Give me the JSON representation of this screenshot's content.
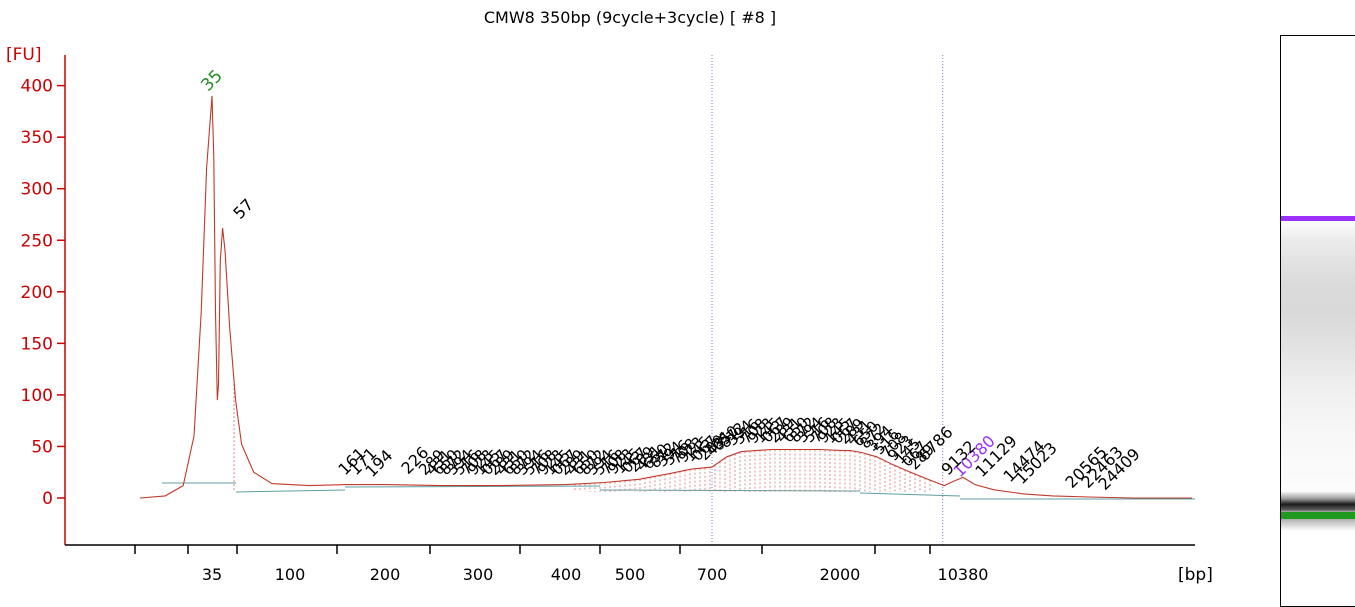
{
  "title": "CMW8 350bp (9cycle+3cycle)  [ #8 ]",
  "chart_data": {
    "type": "line",
    "title": "CMW8 350bp (9cycle+3cycle)  [ #8 ]",
    "ylabel": "[FU]",
    "xlabel": "[bp]",
    "ylim": [
      -40,
      420
    ],
    "yticks": [
      0,
      50,
      100,
      150,
      200,
      250,
      300,
      350,
      400
    ],
    "xtick_labels": [
      "35",
      "100",
      "200",
      "300",
      "400",
      "500",
      "700",
      "2000",
      "10380"
    ],
    "markers": [
      {
        "label": "35",
        "size_bp": 35,
        "fu": 390,
        "color": "#228b22"
      },
      {
        "label": "10380",
        "size_bp": 10380,
        "fu": 20,
        "color": "#9b30ff"
      }
    ],
    "peak_labels": [
      "57",
      "161",
      "171",
      "194",
      "226",
      "6786",
      "9132",
      "11129",
      "14474",
      "15023",
      "20565",
      "22463",
      "24409"
    ],
    "region_boundaries_bp": [
      700,
      9000
    ],
    "series": [
      {
        "color": "#c0392b",
        "points": [
          [
            15,
            0
          ],
          [
            22,
            2
          ],
          [
            27,
            12
          ],
          [
            30,
            60
          ],
          [
            32,
            180
          ],
          [
            33.5,
            320
          ],
          [
            35,
            390
          ],
          [
            36.5,
            330
          ],
          [
            38,
            180
          ],
          [
            39.5,
            95
          ],
          [
            40.5,
            110
          ],
          [
            42,
            230
          ],
          [
            44,
            262
          ],
          [
            46,
            240
          ],
          [
            50,
            165
          ],
          [
            55,
            95
          ],
          [
            60,
            52
          ],
          [
            70,
            25
          ],
          [
            85,
            14
          ],
          [
            120,
            12
          ],
          [
            160,
            13
          ],
          [
            200,
            13
          ],
          [
            260,
            12
          ],
          [
            320,
            12
          ],
          [
            400,
            13
          ],
          [
            460,
            15
          ],
          [
            520,
            18
          ],
          [
            600,
            24
          ],
          [
            650,
            28
          ],
          [
            700,
            30
          ],
          [
            850,
            40
          ],
          [
            1000,
            45
          ],
          [
            1300,
            47
          ],
          [
            1800,
            47
          ],
          [
            2200,
            46
          ],
          [
            2700,
            46
          ],
          [
            3500,
            44
          ],
          [
            4500,
            40
          ],
          [
            5500,
            33
          ],
          [
            6800,
            25
          ],
          [
            8000,
            18
          ],
          [
            9100,
            12
          ],
          [
            9700,
            16
          ],
          [
            10380,
            20
          ],
          [
            11200,
            13
          ],
          [
            12500,
            8
          ],
          [
            14500,
            4
          ],
          [
            16500,
            2
          ],
          [
            19000,
            1
          ],
          [
            22000,
            0
          ],
          [
            26000,
            0
          ]
        ]
      }
    ]
  }
}
